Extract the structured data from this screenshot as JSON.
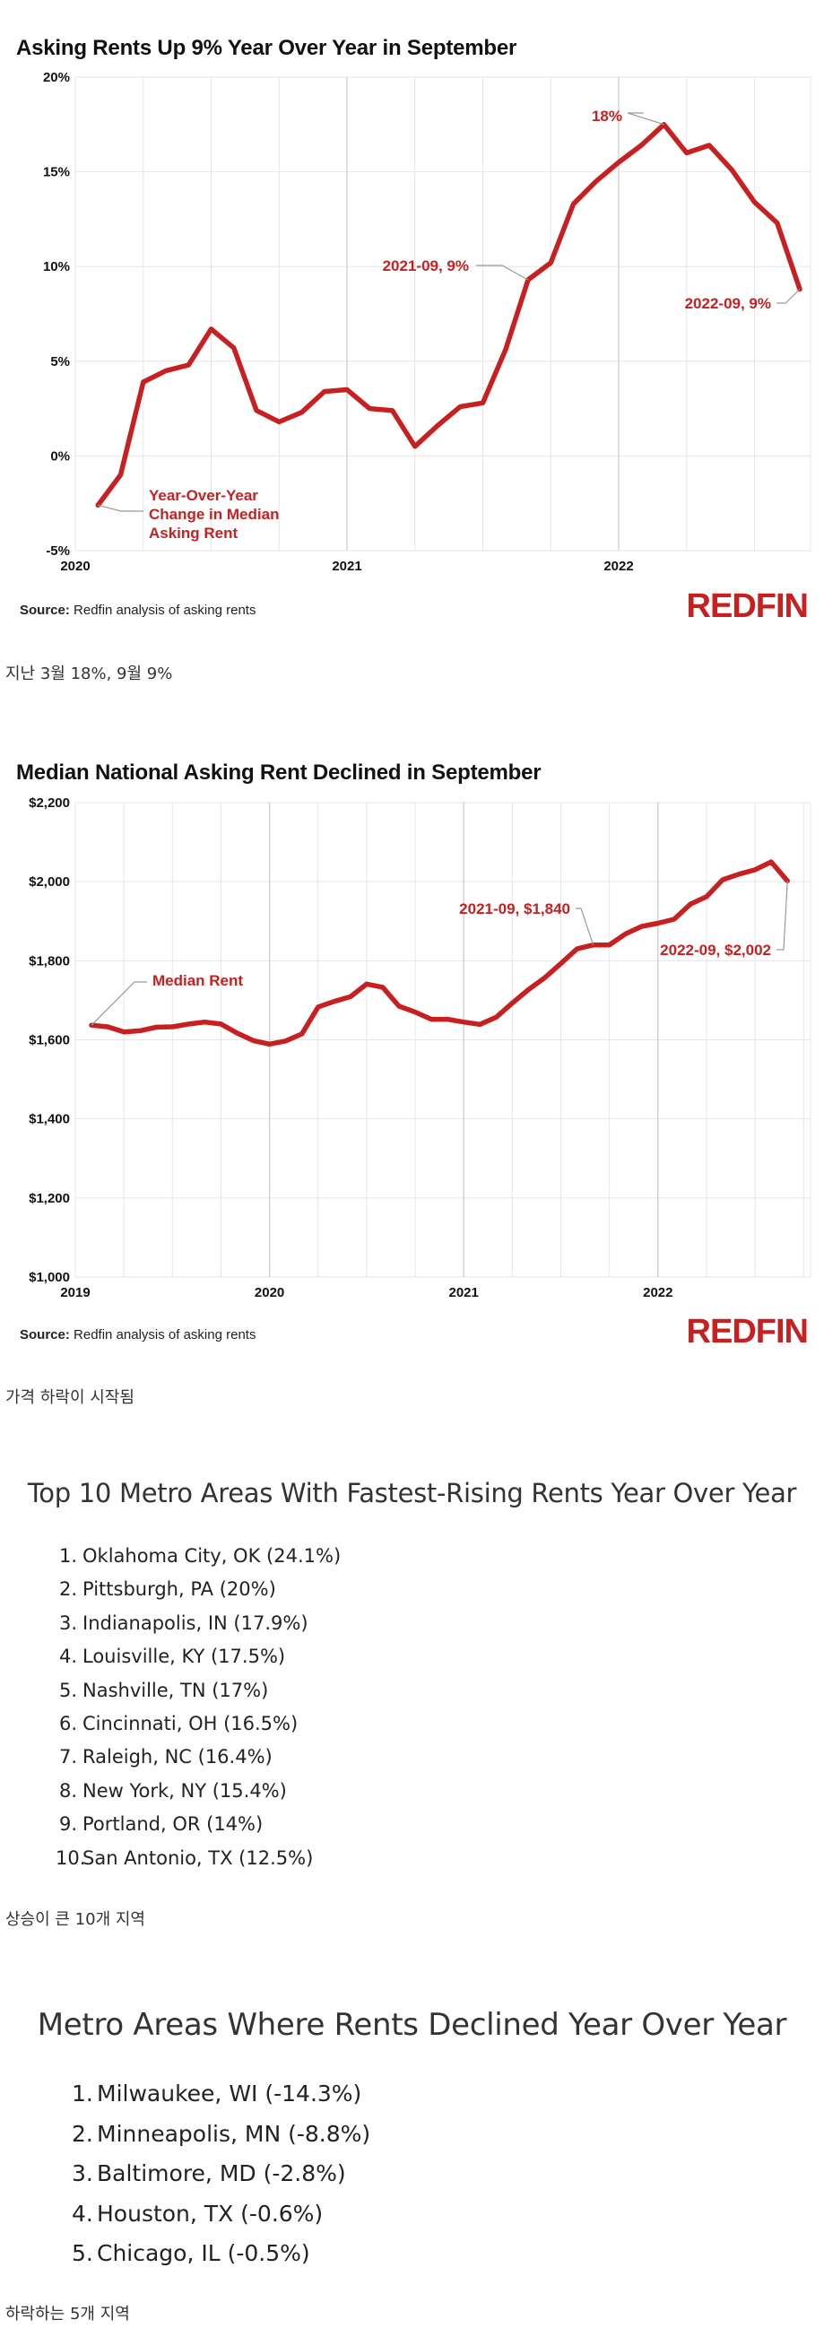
{
  "chart1": {
    "title": "Asking Rents Up 9% Year Over Year in September",
    "source_label": "Source:",
    "source_text": "Redfin analysis of asking rents",
    "brand": "REDFIN",
    "caption": "지난 3월 18%, 9월 9%",
    "annotations": {
      "series_label": [
        "Year-Over-Year",
        "Change in Median",
        "Asking Rent"
      ],
      "peak": "18%",
      "yoy_2021": "2021-09, 9%",
      "yoy_2022": "2022-09, 9%"
    }
  },
  "chart2": {
    "title": "Median National Asking Rent Declined in September",
    "source_label": "Source:",
    "source_text": "Redfin analysis of asking rents",
    "brand": "REDFIN",
    "caption": "가격 하락이 시작됨",
    "annotations": {
      "series_label": "Median Rent",
      "rent_2021": "2021-09, $1,840",
      "rent_2022": "2022-09, $2,002"
    }
  },
  "list_rising": {
    "heading": "Top 10 Metro Areas With Fastest-Rising Rents Year Over Year",
    "items": [
      "Oklahoma City, OK (24.1%)",
      "Pittsburgh, PA (20%)",
      "Indianapolis, IN (17.9%)",
      "Louisville, KY (17.5%)",
      "Nashville, TN (17%)",
      "Cincinnati, OH (16.5%)",
      "Raleigh, NC (16.4%)",
      "New York, NY (15.4%)",
      "Portland, OR (14%)",
      "San Antonio, TX (12.5%)"
    ],
    "caption": "상승이 큰 10개 지역"
  },
  "list_declined": {
    "heading": "Metro Areas Where Rents Declined Year Over Year",
    "items": [
      "Milwaukee, WI (-14.3%)",
      "Minneapolis, MN (-8.8%)",
      "Baltimore, MD (-2.8%)",
      "Houston, TX (-0.6%)",
      "Chicago, IL (-0.5%)"
    ],
    "caption": "하락하는 5개 지역"
  },
  "colors": {
    "series": "#c82021",
    "grid": "#e6e6e6",
    "year_grid": "#cfcfcf",
    "axis_text": "#111111"
  },
  "chart_data": [
    {
      "type": "line",
      "title": "Asking Rents Up 9% Year Over Year in September",
      "xlabel": "",
      "ylabel": "",
      "x_tick_labels": [
        "2020",
        "2021",
        "2022"
      ],
      "y_tick_labels": [
        "-5%",
        "0%",
        "5%",
        "10%",
        "15%",
        "20%"
      ],
      "ylim": [
        -5,
        20
      ],
      "grid": true,
      "x": [
        "2020-02",
        "2020-03",
        "2020-04",
        "2020-05",
        "2020-06",
        "2020-07",
        "2020-08",
        "2020-09",
        "2020-10",
        "2020-11",
        "2020-12",
        "2021-01",
        "2021-02",
        "2021-03",
        "2021-04",
        "2021-05",
        "2021-06",
        "2021-07",
        "2021-08",
        "2021-09",
        "2021-10",
        "2021-11",
        "2021-12",
        "2022-01",
        "2022-02",
        "2022-03",
        "2022-04",
        "2022-05",
        "2022-06",
        "2022-07",
        "2022-08",
        "2022-09"
      ],
      "series": [
        {
          "name": "Year-Over-Year Change in Median Asking Rent",
          "values": [
            -2.6,
            -1.0,
            3.9,
            4.5,
            4.8,
            6.7,
            5.7,
            2.4,
            1.8,
            2.3,
            3.4,
            3.5,
            2.5,
            2.4,
            0.5,
            1.6,
            2.6,
            2.8,
            5.6,
            9.3,
            10.2,
            13.3,
            14.5,
            15.5,
            16.4,
            17.5,
            16.0,
            16.4,
            15.1,
            13.4,
            12.3,
            8.8
          ]
        }
      ]
    },
    {
      "type": "line",
      "title": "Median National Asking Rent Declined in September",
      "xlabel": "",
      "ylabel": "",
      "x_tick_labels": [
        "2019",
        "2020",
        "2021",
        "2022"
      ],
      "y_tick_labels": [
        "$1,000",
        "$1,200",
        "$1,400",
        "$1,600",
        "$1,800",
        "$2,000",
        "$2,200"
      ],
      "ylim": [
        1000,
        2200
      ],
      "grid": true,
      "x": [
        "2019-02",
        "2019-03",
        "2019-04",
        "2019-05",
        "2019-06",
        "2019-07",
        "2019-08",
        "2019-09",
        "2019-10",
        "2019-11",
        "2019-12",
        "2020-01",
        "2020-02",
        "2020-03",
        "2020-04",
        "2020-05",
        "2020-06",
        "2020-07",
        "2020-08",
        "2020-09",
        "2020-10",
        "2020-11",
        "2020-12",
        "2021-01",
        "2021-02",
        "2021-03",
        "2021-04",
        "2021-05",
        "2021-06",
        "2021-07",
        "2021-08",
        "2021-09",
        "2021-10",
        "2021-11",
        "2021-12",
        "2022-01",
        "2022-02",
        "2022-03",
        "2022-04",
        "2022-05",
        "2022-06",
        "2022-07",
        "2022-08",
        "2022-09"
      ],
      "series": [
        {
          "name": "Median Rent",
          "values": [
            1637,
            1633,
            1620,
            1623,
            1632,
            1633,
            1640,
            1645,
            1640,
            1617,
            1598,
            1589,
            1597,
            1615,
            1683,
            1697,
            1709,
            1741,
            1733,
            1685,
            1670,
            1652,
            1652,
            1645,
            1639,
            1657,
            1693,
            1727,
            1757,
            1793,
            1830,
            1840,
            1840,
            1868,
            1887,
            1895,
            1905,
            1943,
            1962,
            2005,
            2019,
            2030,
            2050,
            2002
          ]
        }
      ]
    }
  ]
}
